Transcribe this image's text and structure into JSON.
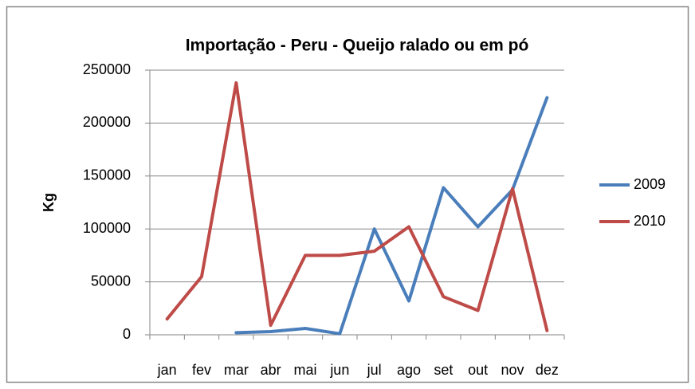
{
  "chart_data": {
    "type": "line",
    "title": "Importação - Peru - Queijo ralado ou em pó",
    "y_label": "Kg",
    "categories": [
      "jan",
      "fev",
      "mar",
      "abr",
      "mai",
      "jun",
      "jul",
      "ago",
      "set",
      "out",
      "nov",
      "dez"
    ],
    "series": [
      {
        "name": "2009",
        "color": "#4a7ebb",
        "values": [
          null,
          null,
          2000,
          3000,
          6000,
          1000,
          100000,
          32000,
          139000,
          102000,
          137000,
          224000
        ]
      },
      {
        "name": "2010",
        "color": "#be4b48",
        "values": [
          15000,
          55000,
          238000,
          9000,
          75000,
          75000,
          79000,
          102000,
          36000,
          23000,
          138000,
          4000
        ]
      }
    ],
    "ylim": [
      0,
      250000
    ],
    "yticks": [
      0,
      50000,
      100000,
      150000,
      200000,
      250000
    ],
    "grid": true,
    "legend": "right"
  }
}
